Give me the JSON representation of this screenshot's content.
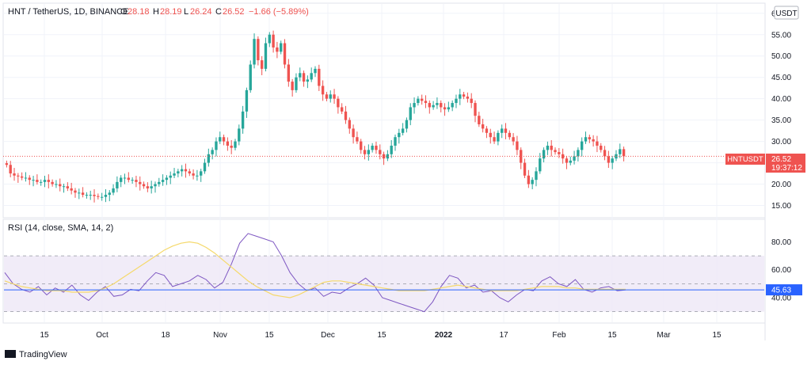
{
  "header": {
    "symbol": "HNT / TetherUS, 1D, BINANCE",
    "o_label": "O",
    "o_value": "28.18",
    "h_label": "H",
    "h_value": "28.19",
    "l_label": "L",
    "l_value": "26.24",
    "c_label": "C",
    "c_value": "26.52",
    "change": "−1.66 (−5.89%)"
  },
  "currency_button": "USDT",
  "price_tag": {
    "symbol": "HNTUSDT",
    "price": "26.52",
    "countdown": "19:37:12"
  },
  "rsi_panel": {
    "label": "RSI (14, close, SMA, 14, 2)",
    "value_tag": "45.63"
  },
  "branding": {
    "logo_text": "TradingView"
  },
  "colors": {
    "up": "#26a69a",
    "down": "#ef5350",
    "rsi": "#7e57c2",
    "rsi_ma": "#f5d96b",
    "band": "#ede7f6",
    "grid": "#f0f3fa",
    "axis_text": "#131722"
  },
  "chart_data": [
    {
      "type": "candlestick",
      "title": "HNT / TetherUS, 1D, BINANCE",
      "x_tick_labels": [
        "15",
        "Oct",
        "18",
        "Nov",
        "15",
        "Dec",
        "15",
        "2022",
        "17",
        "Feb",
        "15",
        "Mar",
        "15"
      ],
      "y_ticks": [
        15,
        20,
        25,
        30,
        35,
        40,
        45,
        50,
        55,
        60
      ],
      "ylim": [
        12.5,
        62
      ],
      "last_price": 26.52,
      "close_series": [
        24.5,
        22.5,
        22,
        21.8,
        21.5,
        21.5,
        21,
        21,
        20.5,
        20.5,
        21,
        20.5,
        20,
        20,
        19.5,
        19.5,
        19,
        18.5,
        18,
        18,
        17.5,
        17.5,
        17.5,
        17.2,
        17,
        17,
        17.5,
        18,
        19,
        20.5,
        21.5,
        21.5,
        21,
        21,
        20.5,
        20,
        19.5,
        19,
        19.5,
        20,
        20.5,
        21,
        21.5,
        22,
        22.5,
        23,
        23.5,
        23,
        22.5,
        22,
        22,
        23,
        25,
        27,
        28,
        30,
        31,
        30,
        29,
        28.5,
        30,
        33,
        37,
        42,
        48,
        54,
        49,
        47,
        53,
        55,
        52,
        51,
        53,
        48,
        44,
        42,
        45,
        46,
        44,
        44.5,
        46,
        47,
        43,
        41,
        40,
        41,
        40,
        38,
        37,
        35,
        33,
        31,
        30,
        28,
        27,
        28,
        29,
        28,
        27,
        26,
        27,
        29,
        31,
        32,
        33,
        35,
        38,
        39,
        40,
        39.5,
        39,
        38,
        38.5,
        39,
        38,
        37.5,
        38,
        39,
        40,
        41,
        40.5,
        40,
        39,
        36,
        34,
        33,
        32,
        31,
        30,
        32,
        33,
        32,
        31,
        30,
        28,
        25,
        22,
        20,
        21,
        23,
        26,
        28,
        29,
        28,
        27.5,
        27,
        26,
        25,
        25.5,
        26.5,
        28,
        30,
        31,
        30.5,
        30,
        29,
        28,
        26.5,
        25,
        26,
        27,
        28.19,
        26.52
      ]
    },
    {
      "type": "line",
      "title": "RSI (14, close, SMA, 14, 2)",
      "y_ticks": [
        40,
        60,
        80
      ],
      "ylim": [
        23,
        95
      ],
      "band": [
        30,
        70
      ],
      "midline": 50,
      "last_value": 45.63,
      "series": [
        {
          "name": "RSI",
          "values": [
            58,
            50,
            46,
            44,
            48,
            42,
            47,
            44,
            49,
            42,
            38,
            44,
            48,
            41,
            42,
            46,
            45,
            52,
            58,
            56,
            48,
            50,
            52,
            56,
            53,
            47,
            51,
            64,
            79,
            86,
            84,
            82,
            80,
            70,
            58,
            50,
            45,
            47,
            41,
            44,
            43,
            47,
            50,
            54,
            49,
            40,
            38,
            36,
            34,
            32,
            30,
            37,
            48,
            56,
            54,
            47,
            49,
            44,
            45,
            40,
            37,
            42,
            46,
            45,
            52,
            55,
            50,
            48,
            53,
            46,
            44,
            47,
            48,
            45,
            45.6
          ]
        },
        {
          "name": "RSI MA",
          "values": [
            52,
            50,
            48,
            47,
            46,
            45,
            45,
            45,
            44,
            44,
            44,
            45,
            47,
            50,
            54,
            58,
            62,
            66,
            70,
            74,
            77,
            79,
            80,
            79,
            76,
            72,
            67,
            62,
            57,
            52,
            48,
            45,
            42,
            41,
            40,
            42,
            45,
            48,
            51,
            52,
            52,
            51,
            50,
            49,
            48,
            47,
            46,
            45,
            45,
            45,
            45,
            46,
            47,
            48,
            49,
            48,
            47,
            46,
            45,
            45,
            45,
            45,
            46,
            47,
            48,
            48,
            48,
            47,
            47,
            46,
            46,
            46,
            46,
            46,
            46
          ]
        }
      ]
    }
  ]
}
